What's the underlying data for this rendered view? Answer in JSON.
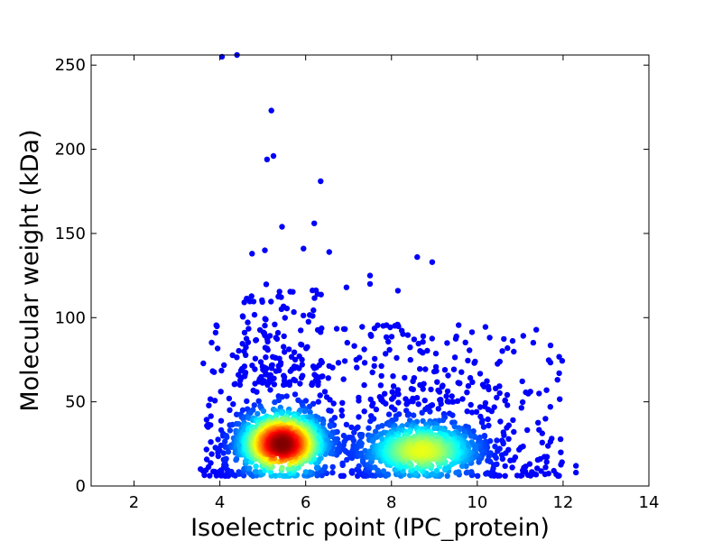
{
  "chart_data": {
    "type": "scatter",
    "title": "",
    "xlabel": "Isoelectric point (IPC_protein)",
    "ylabel": "Molecular weight (kDa)",
    "xlim": [
      1,
      14
    ],
    "ylim": [
      0,
      256
    ],
    "xticks": [
      2,
      4,
      6,
      8,
      10,
      12,
      14
    ],
    "yticks": [
      0,
      50,
      100,
      150,
      200,
      250
    ],
    "grid": false,
    "legend": "none",
    "colormap": "jet (color encodes local point density: blue = low, red = high)",
    "density_clusters": [
      {
        "center": [
          5.45,
          25
        ],
        "spread": [
          0.55,
          11
        ],
        "peak_density": "high"
      },
      {
        "center": [
          8.7,
          21
        ],
        "spread": [
          0.75,
          10
        ],
        "peak_density": "medium"
      }
    ],
    "notable_points": [
      {
        "x": 4.05,
        "y": 255
      },
      {
        "x": 4.4,
        "y": 256
      },
      {
        "x": 5.2,
        "y": 223
      },
      {
        "x": 5.25,
        "y": 196
      },
      {
        "x": 5.1,
        "y": 194
      },
      {
        "x": 6.35,
        "y": 181
      },
      {
        "x": 6.2,
        "y": 156
      },
      {
        "x": 5.45,
        "y": 154
      },
      {
        "x": 5.05,
        "y": 140
      },
      {
        "x": 4.75,
        "y": 138
      },
      {
        "x": 5.95,
        "y": 141
      },
      {
        "x": 6.55,
        "y": 139
      },
      {
        "x": 8.6,
        "y": 136
      },
      {
        "x": 8.95,
        "y": 133
      },
      {
        "x": 7.5,
        "y": 125
      },
      {
        "x": 7.5,
        "y": 120
      },
      {
        "x": 6.95,
        "y": 118
      },
      {
        "x": 8.15,
        "y": 116
      },
      {
        "x": 3.55,
        "y": 10
      },
      {
        "x": 12.3,
        "y": 12
      },
      {
        "x": 12.3,
        "y": 8
      }
    ]
  }
}
